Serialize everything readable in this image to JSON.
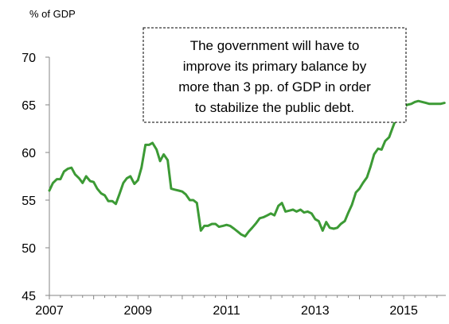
{
  "chart_data": {
    "type": "line",
    "ylabel": "% of GDP",
    "ylim": [
      45,
      70
    ],
    "yticks": [
      45,
      50,
      55,
      60,
      65,
      70
    ],
    "xlim": [
      2007,
      2015.95
    ],
    "xticks": [
      2007,
      2009,
      2011,
      2013,
      2015
    ],
    "x_tick_labels": [
      "2007",
      "2009",
      "2011",
      "2013",
      "2015"
    ],
    "y_tick_labels": [
      "45",
      "50",
      "55",
      "60",
      "65",
      "70"
    ],
    "grid": false,
    "line_color": "#3c9a35",
    "annotation": [
      "The government will have to",
      "improve its primary balance by",
      "more than 3 pp. of GDP in order",
      "to stabilize the public debt."
    ],
    "series": [
      {
        "x": [
          2007.0,
          2007.08,
          2007.17,
          2007.25,
          2007.33,
          2007.42,
          2007.5,
          2007.58,
          2007.67,
          2007.75,
          2007.83,
          2007.92,
          2008.0,
          2008.08,
          2008.17,
          2008.25,
          2008.33,
          2008.42,
          2008.5,
          2008.58,
          2008.67,
          2008.75,
          2008.83,
          2008.92,
          2009.0,
          2009.08,
          2009.17,
          2009.25,
          2009.33,
          2009.42,
          2009.5,
          2009.58,
          2009.67,
          2009.75,
          2009.83,
          2009.92,
          2010.0,
          2010.08,
          2010.17,
          2010.25,
          2010.33,
          2010.42,
          2010.5,
          2010.58,
          2010.67,
          2010.75,
          2010.83,
          2010.92,
          2011.0,
          2011.08,
          2011.17,
          2011.25,
          2011.33,
          2011.42,
          2011.5,
          2011.58,
          2011.67,
          2011.75,
          2011.83,
          2011.92,
          2012.0,
          2012.08,
          2012.17,
          2012.25,
          2012.33,
          2012.42,
          2012.5,
          2012.58,
          2012.67,
          2012.75,
          2012.83,
          2012.92,
          2013.0,
          2013.08,
          2013.17,
          2013.25,
          2013.33,
          2013.42,
          2013.5,
          2013.58,
          2013.67,
          2013.75,
          2013.83,
          2013.92,
          2014.0,
          2014.08,
          2014.17,
          2014.25,
          2014.33,
          2014.42,
          2014.5,
          2014.58,
          2014.67,
          2014.75,
          2014.83,
          2014.92,
          2015.0,
          2015.08,
          2015.17,
          2015.25,
          2015.33,
          2015.42,
          2015.5,
          2015.58,
          2015.67,
          2015.75,
          2015.83,
          2015.92
        ],
        "values": [
          56.0,
          56.8,
          57.2,
          57.2,
          58.0,
          58.3,
          58.4,
          57.7,
          57.3,
          56.8,
          57.5,
          57.0,
          56.9,
          56.2,
          55.7,
          55.5,
          54.9,
          54.9,
          54.6,
          55.6,
          56.8,
          57.3,
          57.5,
          56.7,
          57.1,
          58.4,
          60.8,
          60.8,
          61.0,
          60.3,
          59.1,
          59.8,
          59.2,
          56.2,
          56.1,
          56.0,
          55.9,
          55.6,
          55.0,
          55.0,
          54.7,
          51.8,
          52.3,
          52.3,
          52.5,
          52.5,
          52.2,
          52.3,
          52.4,
          52.3,
          52.0,
          51.7,
          51.4,
          51.2,
          51.7,
          52.1,
          52.6,
          53.1,
          53.2,
          53.4,
          53.6,
          53.4,
          54.4,
          54.7,
          53.8,
          53.9,
          54.0,
          53.8,
          54.0,
          53.7,
          53.8,
          53.6,
          53.0,
          52.8,
          51.8,
          52.7,
          52.1,
          52.0,
          52.1,
          52.5,
          52.8,
          53.7,
          54.5,
          55.8,
          56.2,
          56.8,
          57.4,
          58.5,
          59.8,
          60.4,
          60.3,
          61.2,
          61.6,
          62.6,
          63.6,
          64.3,
          64.8,
          65.0,
          65.1,
          65.3,
          65.4,
          65.3,
          65.2,
          65.1,
          65.1,
          65.1,
          65.1,
          65.2
        ]
      }
    ]
  }
}
